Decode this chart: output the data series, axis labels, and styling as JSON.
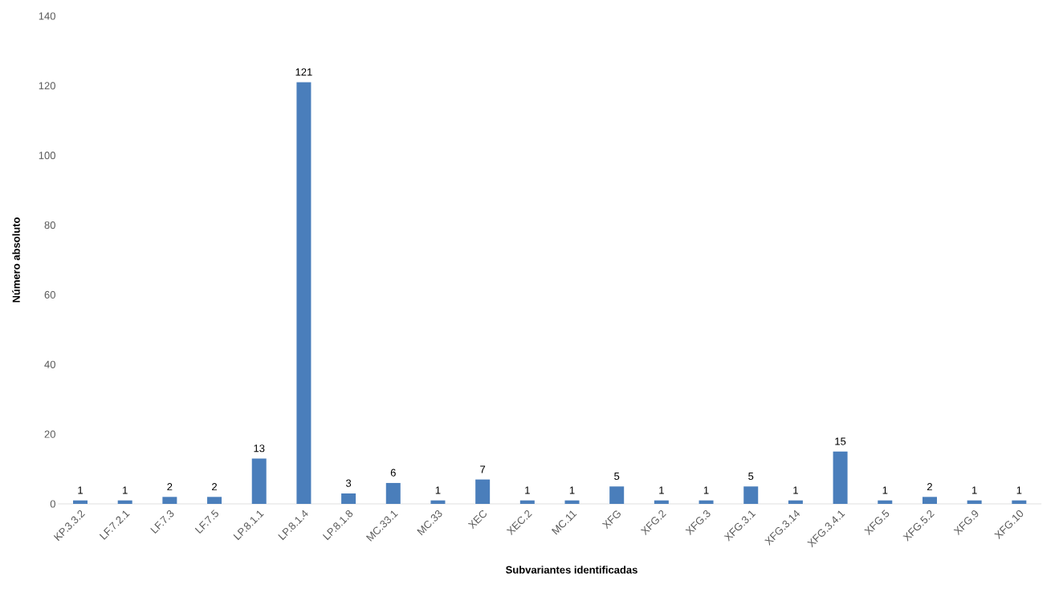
{
  "chart_data": {
    "type": "bar",
    "xlabel": "Subvariantes identificadas",
    "ylabel": "Número absoluto",
    "categories": [
      "KP.3.3.2",
      "LF.7.2.1",
      "LF.7.3",
      "LF.7.5",
      "LP.8.1.1",
      "LP.8.1.4",
      "LP.8.1.8",
      "MC.33.1",
      "MC.33",
      "XEC",
      "XEC.2",
      "MC.11",
      "XFG",
      "XFG.2",
      "XFG.3",
      "XFG.3.1",
      "XFG.3.14",
      "XFG.3.4.1",
      "XFG.5",
      "XFG.5.2",
      "XFG.9",
      "XFG.10"
    ],
    "values": [
      1,
      1,
      2,
      2,
      13,
      121,
      3,
      6,
      1,
      7,
      1,
      1,
      5,
      1,
      1,
      5,
      1,
      15,
      1,
      2,
      1,
      1
    ],
    "color": "#4a7ebb",
    "ylim": [
      0,
      140
    ],
    "yticks": [
      0,
      20,
      40,
      60,
      80,
      100,
      120,
      140
    ],
    "data_labels": true
  }
}
